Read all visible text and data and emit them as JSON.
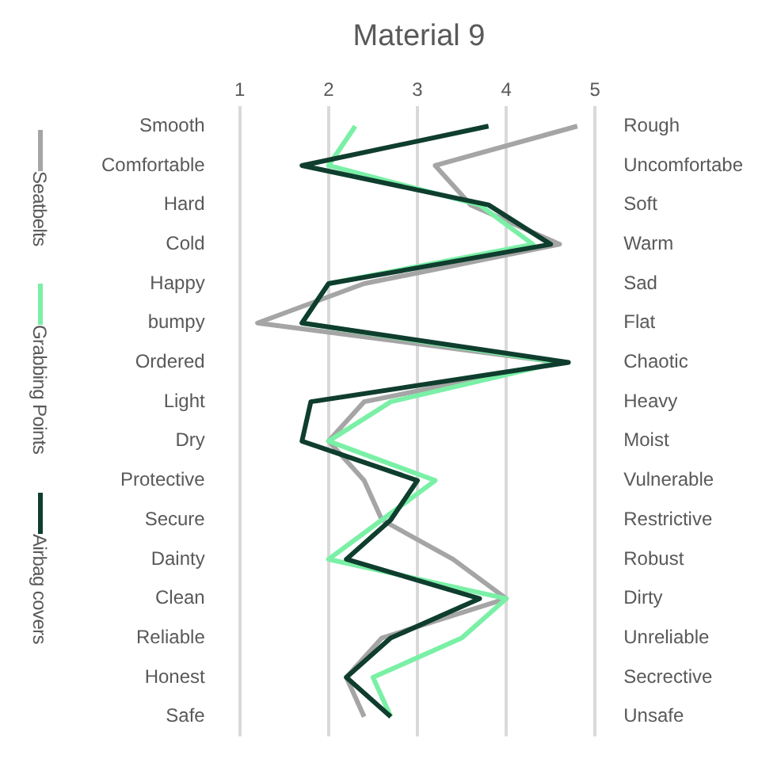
{
  "chart_data": {
    "type": "line",
    "title": "Material 9",
    "categories": [
      "Smooth",
      "Comfortable",
      "Hard",
      "Cold",
      "Happy",
      "bumpy",
      "Ordered",
      "Light",
      "Dry",
      "Protective",
      "Secure",
      "Dainty",
      "Clean",
      "Reliable",
      "Honest",
      "Safe"
    ],
    "y2_categories": [
      "Rough",
      "Uncomfortabe",
      "Soft",
      "Warm",
      "Sad",
      "Flat",
      "Chaotic",
      "Heavy",
      "Moist",
      "Vulnerable",
      "Restrictive",
      "Robust",
      "Dirty",
      "Unreliable",
      "Secrective",
      "Unsafe"
    ],
    "orientation": "horizontal",
    "xlim": [
      1,
      5
    ],
    "xticks": [
      1,
      2,
      3,
      4,
      5
    ],
    "grid": "x",
    "legend": "left",
    "marker": "none",
    "line_style": "solid",
    "series": [
      {
        "name": "Seatbelts",
        "color": "#a5a5a5",
        "values": [
          4.8,
          3.2,
          3.6,
          4.6,
          2.4,
          1.2,
          4.6,
          2.4,
          2.0,
          2.4,
          2.6,
          3.4,
          4.0,
          2.6,
          2.2,
          2.4
        ]
      },
      {
        "name": "Grabbing Points",
        "color": "#7af0a6",
        "values": [
          2.3,
          2.0,
          3.7,
          4.3,
          2.0,
          1.7,
          4.6,
          2.7,
          2.0,
          3.2,
          2.6,
          2.0,
          4.0,
          3.5,
          2.5,
          2.7
        ]
      },
      {
        "name": "Airbag covers",
        "color": "#0f3d2e",
        "values": [
          3.8,
          1.7,
          3.8,
          4.5,
          2.0,
          1.7,
          4.7,
          1.8,
          1.7,
          3.0,
          2.7,
          2.2,
          3.7,
          2.7,
          2.2,
          2.7
        ]
      }
    ]
  }
}
